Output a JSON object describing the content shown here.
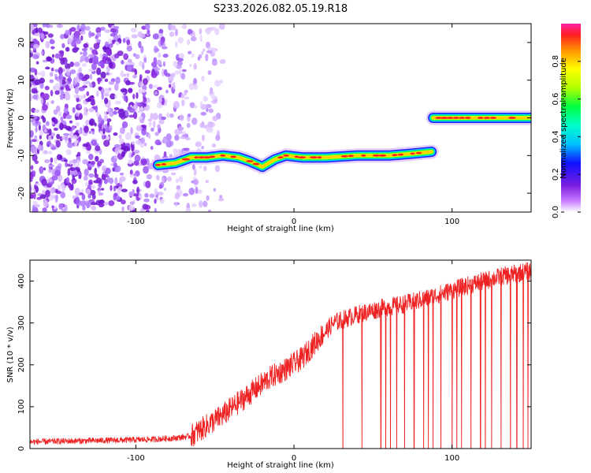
{
  "title": "S233.2026.082.05.19.R18",
  "chart_data": [
    {
      "type": "heatmap",
      "title": "S233.2026.082.05.19.R18",
      "xlabel": "Height of straight line (km)",
      "ylabel": "Frequency (Hz)",
      "xlim": [
        -167,
        150
      ],
      "ylim": [
        -25,
        25
      ],
      "xticks": [
        -100,
        0,
        100
      ],
      "yticks": [
        -20,
        -10,
        0,
        10,
        20
      ],
      "colorbar": {
        "label": "Normalized spectral amplitude",
        "range": [
          0,
          1
        ],
        "ticks": [
          0,
          0.2,
          0.4,
          0.6,
          0.8
        ],
        "tick_labels": [
          "0.0",
          "0.2",
          "0.4",
          "0.6",
          "0.8"
        ]
      },
      "noise_region": {
        "x_start": -167,
        "x_end": -57,
        "note": "scattered low-amplitude noise"
      },
      "ridge": [
        {
          "x": -86,
          "y": -12.5
        },
        {
          "x": -75,
          "y": -12.0
        },
        {
          "x": -65,
          "y": -10.5
        },
        {
          "x": -55,
          "y": -10.5
        },
        {
          "x": -45,
          "y": -10.0
        },
        {
          "x": -35,
          "y": -10.5
        },
        {
          "x": -28,
          "y": -11.5
        },
        {
          "x": -20,
          "y": -13.0
        },
        {
          "x": -12,
          "y": -11.0
        },
        {
          "x": -5,
          "y": -10.0
        },
        {
          "x": 5,
          "y": -10.5
        },
        {
          "x": 20,
          "y": -10.5
        },
        {
          "x": 40,
          "y": -10.0
        },
        {
          "x": 60,
          "y": -10.0
        },
        {
          "x": 75,
          "y": -9.5
        },
        {
          "x": 87,
          "y": -9.0
        },
        {
          "x": 88,
          "y": 0.0
        },
        {
          "x": 95,
          "y": 0.0
        },
        {
          "x": 110,
          "y": 0.0
        },
        {
          "x": 130,
          "y": 0.0
        },
        {
          "x": 150,
          "y": 0.0
        }
      ]
    },
    {
      "type": "line",
      "xlabel": "Height of straight line (km)",
      "ylabel": "SNR (10 * v/v)",
      "xlim": [
        -167,
        150
      ],
      "ylim": [
        0,
        450
      ],
      "xticks": [
        -100,
        0,
        100
      ],
      "yticks": [
        0,
        100,
        200,
        300,
        400
      ],
      "series": [
        {
          "name": "SNR",
          "color": "#ee2222",
          "x": [
            -167,
            -140,
            -110,
            -90,
            -75,
            -65,
            -55,
            -45,
            -35,
            -25,
            -15,
            -5,
            5,
            15,
            25,
            40,
            55,
            70,
            85,
            100,
            115,
            130,
            150
          ],
          "y": [
            16,
            18,
            20,
            22,
            25,
            30,
            55,
            80,
            110,
            140,
            170,
            190,
            215,
            260,
            300,
            320,
            335,
            345,
            360,
            378,
            395,
            410,
            425
          ],
          "dropouts_x": [
            31,
            43,
            55,
            58,
            61,
            65,
            70,
            76,
            82,
            85,
            88,
            93,
            100,
            103,
            106,
            112,
            118,
            121,
            125,
            131,
            137,
            141,
            145,
            148
          ]
        }
      ]
    }
  ],
  "colors": {
    "line": "#ee2222",
    "noise": "#8a2be2",
    "ridge_core": "#ff2020"
  }
}
